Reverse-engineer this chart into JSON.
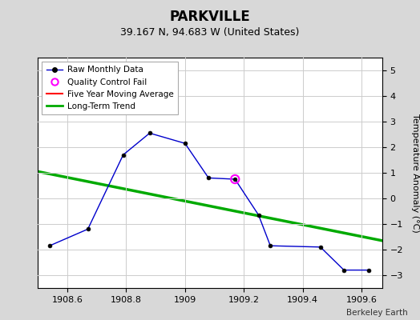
{
  "title": "PARKVILLE",
  "subtitle": "39.167 N, 94.683 W (United States)",
  "ylabel": "Temperature Anomaly (°C)",
  "watermark": "Berkeley Earth",
  "xlim": [
    1908.5,
    1909.67
  ],
  "ylim": [
    -3.5,
    5.5
  ],
  "yticks": [
    -3,
    -2,
    -1,
    0,
    1,
    2,
    3,
    4,
    5
  ],
  "xticks": [
    1908.6,
    1908.8,
    1909.0,
    1909.2,
    1909.4,
    1909.6
  ],
  "xtick_labels": [
    "1908.6",
    "1908.8",
    "1909",
    "1909.2",
    "1909.4",
    "1909.6"
  ],
  "bg_color": "#d8d8d8",
  "plot_bg_color": "#ffffff",
  "raw_data_x": [
    1908.54,
    1908.67,
    1908.79,
    1908.88,
    1909.0,
    1909.08,
    1909.17,
    1909.25,
    1909.29,
    1909.46,
    1909.54,
    1909.625
  ],
  "raw_data_y": [
    -1.85,
    -1.2,
    1.7,
    2.55,
    2.15,
    0.8,
    0.75,
    -0.65,
    -1.85,
    -1.9,
    -2.8,
    -2.8
  ],
  "qc_fail_x": [
    1909.17
  ],
  "qc_fail_y": [
    0.75
  ],
  "trend_x": [
    1908.5,
    1909.67
  ],
  "trend_y": [
    1.05,
    -1.65
  ],
  "raw_color": "#0000cc",
  "raw_marker_color": "#000000",
  "qc_color": "#ff00ff",
  "moving_avg_color": "#ff0000",
  "trend_color": "#00aa00",
  "grid_color": "#cccccc",
  "title_fontsize": 12,
  "subtitle_fontsize": 9,
  "tick_fontsize": 8,
  "ylabel_fontsize": 8,
  "legend_fontsize": 7.5
}
